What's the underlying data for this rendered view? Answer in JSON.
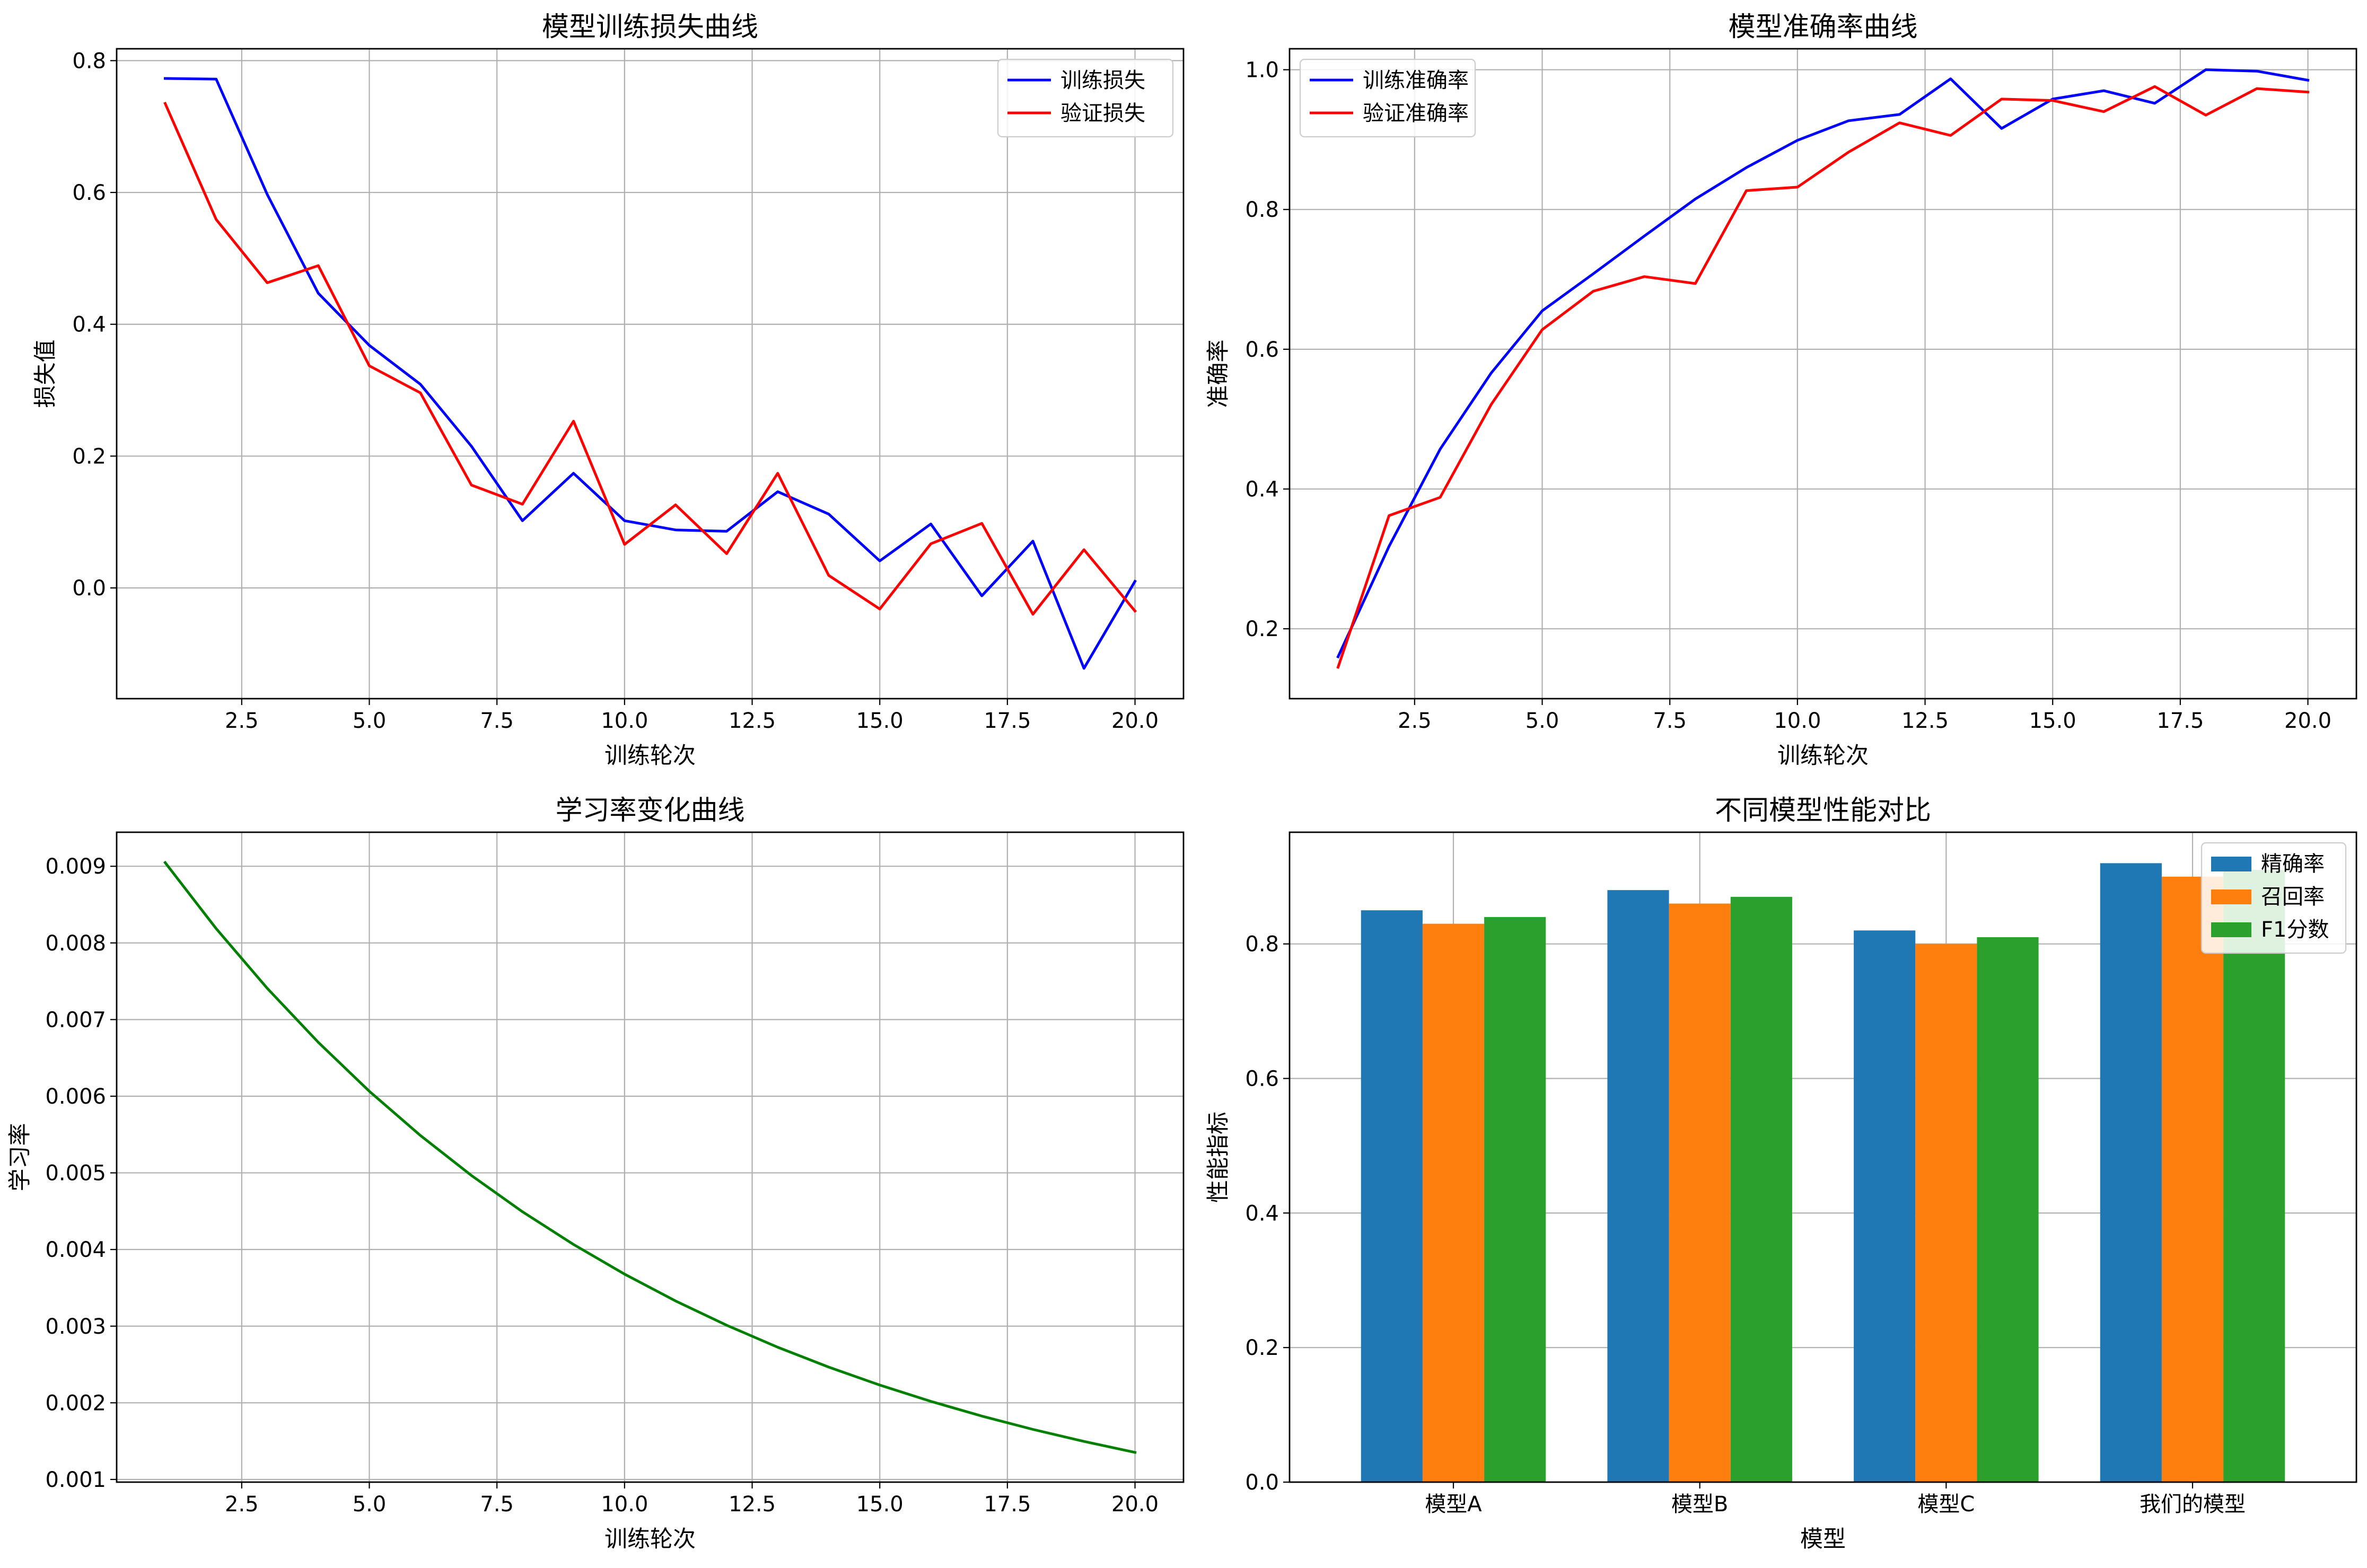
{
  "chart_data": [
    {
      "type": "line",
      "title": "模型训练损失曲线",
      "xlabel": "训练轮次",
      "ylabel": "损失值",
      "x": [
        1,
        2,
        3,
        4,
        5,
        6,
        7,
        8,
        9,
        10,
        11,
        12,
        13,
        14,
        15,
        16,
        17,
        18,
        19,
        20
      ],
      "xlim": [
        0.05,
        20.95
      ],
      "ylim": [
        -0.168,
        0.818
      ],
      "xticks": [
        2.5,
        5.0,
        7.5,
        10.0,
        12.5,
        15.0,
        17.5,
        20.0
      ],
      "xtick_labels": [
        "2.5",
        "5.0",
        "7.5",
        "10.0",
        "12.5",
        "15.0",
        "17.5",
        "20.0"
      ],
      "yticks": [
        0.0,
        0.2,
        0.4,
        0.6,
        0.8
      ],
      "ytick_labels": [
        "0.0",
        "0.2",
        "0.4",
        "0.6",
        "0.8"
      ],
      "grid": true,
      "legend_position": "upper-right",
      "series": [
        {
          "name": "训练损失",
          "color": "#0000ff",
          "values": [
            0.773,
            0.772,
            0.597,
            0.447,
            0.368,
            0.309,
            0.215,
            0.102,
            0.174,
            0.102,
            0.088,
            0.086,
            0.146,
            0.112,
            0.041,
            0.097,
            -0.012,
            0.071,
            -0.122,
            0.01
          ]
        },
        {
          "name": "验证损失",
          "color": "#ff0000",
          "values": [
            0.735,
            0.559,
            0.463,
            0.489,
            0.337,
            0.296,
            0.156,
            0.127,
            0.253,
            0.066,
            0.126,
            0.052,
            0.174,
            0.019,
            -0.032,
            0.067,
            0.098,
            -0.04,
            0.058,
            -0.035
          ]
        }
      ]
    },
    {
      "type": "line",
      "title": "模型准确率曲线",
      "xlabel": "训练轮次",
      "ylabel": "准确率",
      "x": [
        1,
        2,
        3,
        4,
        5,
        6,
        7,
        8,
        9,
        10,
        11,
        12,
        13,
        14,
        15,
        16,
        17,
        18,
        19,
        20
      ],
      "xlim": [
        0.05,
        20.95
      ],
      "ylim": [
        0.1,
        1.03
      ],
      "xticks": [
        2.5,
        5.0,
        7.5,
        10.0,
        12.5,
        15.0,
        17.5,
        20.0
      ],
      "xtick_labels": [
        "2.5",
        "5.0",
        "7.5",
        "10.0",
        "12.5",
        "15.0",
        "17.5",
        "20.0"
      ],
      "yticks": [
        0.2,
        0.4,
        0.6,
        0.8,
        1.0
      ],
      "ytick_labels": [
        "0.2",
        "0.4",
        "0.6",
        "0.8",
        "1.0"
      ],
      "grid": true,
      "legend_position": "upper-left",
      "series": [
        {
          "name": "训练准确率",
          "color": "#0000ff",
          "values": [
            0.16,
            0.318,
            0.457,
            0.566,
            0.655,
            0.708,
            0.762,
            0.815,
            0.86,
            0.899,
            0.927,
            0.936,
            0.987,
            0.916,
            0.958,
            0.97,
            0.952,
            1.0,
            0.998,
            0.985
          ]
        },
        {
          "name": "验证准确率",
          "color": "#ff0000",
          "values": [
            0.145,
            0.362,
            0.388,
            0.521,
            0.628,
            0.683,
            0.704,
            0.694,
            0.827,
            0.832,
            0.882,
            0.924,
            0.906,
            0.958,
            0.956,
            0.94,
            0.976,
            0.935,
            0.973,
            0.968
          ]
        }
      ]
    },
    {
      "type": "line",
      "title": "学习率变化曲线",
      "xlabel": "训练轮次",
      "ylabel": "学习率",
      "x": [
        1,
        2,
        3,
        4,
        5,
        6,
        7,
        8,
        9,
        10,
        11,
        12,
        13,
        14,
        15,
        16,
        17,
        18,
        19,
        20
      ],
      "xlim": [
        0.05,
        20.95
      ],
      "ylim": [
        0.000965,
        0.009444
      ],
      "xticks": [
        2.5,
        5.0,
        7.5,
        10.0,
        12.5,
        15.0,
        17.5,
        20.0
      ],
      "xtick_labels": [
        "2.5",
        "5.0",
        "7.5",
        "10.0",
        "12.5",
        "15.0",
        "17.5",
        "20.0"
      ],
      "yticks": [
        0.001,
        0.002,
        0.003,
        0.004,
        0.005,
        0.006,
        0.007,
        0.008,
        0.009
      ],
      "ytick_labels": [
        "0.001",
        "0.002",
        "0.003",
        "0.004",
        "0.005",
        "0.006",
        "0.007",
        "0.008",
        "0.009"
      ],
      "grid": true,
      "series": [
        {
          "color": "#008000",
          "values": [
            0.009048,
            0.008187,
            0.007408,
            0.006703,
            0.006065,
            0.005488,
            0.004966,
            0.004493,
            0.004066,
            0.003679,
            0.003329,
            0.003012,
            0.002725,
            0.002466,
            0.002231,
            0.002019,
            0.001827,
            0.001653,
            0.001496,
            0.001353
          ]
        }
      ]
    },
    {
      "type": "bar",
      "title": "不同模型性能对比",
      "xlabel": "模型",
      "ylabel": "性能指标",
      "categories": [
        "模型A",
        "模型B",
        "模型C",
        "我们的模型"
      ],
      "xlim": [
        -0.665,
        3.665
      ],
      "ylim": [
        0.0,
        0.966
      ],
      "yticks": [
        0.0,
        0.2,
        0.4,
        0.6,
        0.8
      ],
      "ytick_labels": [
        "0.0",
        "0.2",
        "0.4",
        "0.6",
        "0.8"
      ],
      "bar_width": 0.25,
      "grid": true,
      "legend_position": "upper-right",
      "series": [
        {
          "name": "精确率",
          "color": "#1f77b4",
          "values": [
            0.85,
            0.88,
            0.82,
            0.92
          ]
        },
        {
          "name": "召回率",
          "color": "#ff7f0e",
          "values": [
            0.83,
            0.86,
            0.8,
            0.9
          ]
        },
        {
          "name": "F1分数",
          "color": "#2ca02c",
          "values": [
            0.84,
            0.87,
            0.81,
            0.91
          ]
        }
      ]
    }
  ]
}
